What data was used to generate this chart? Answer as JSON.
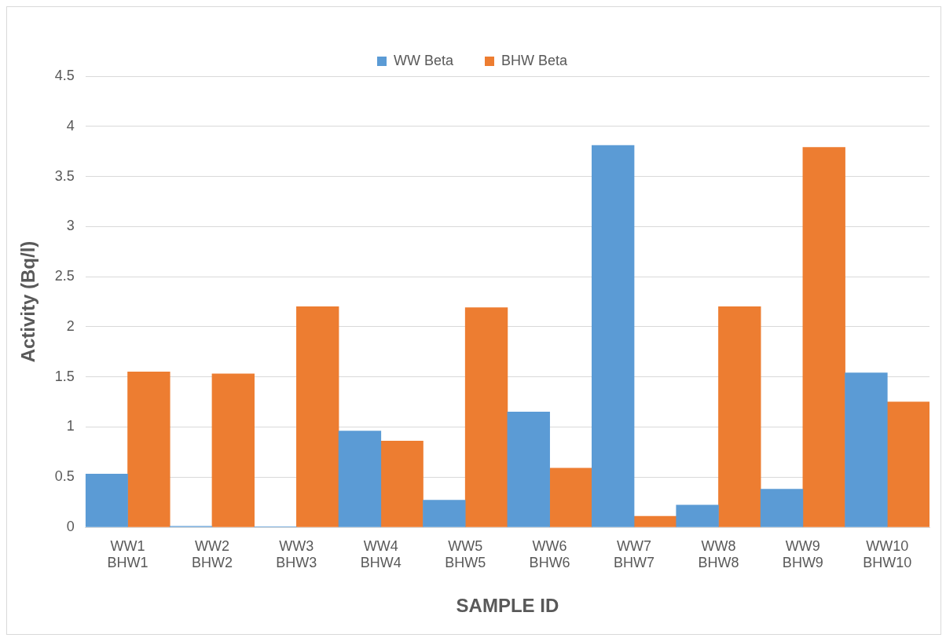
{
  "chart_data": {
    "type": "bar",
    "xlabel": "SAMPLE ID",
    "ylabel": "Activity (Bq/l)",
    "categories": [
      "WW1\nBHW1",
      "WW2\nBHW2",
      "WW3\nBHW3",
      "WW4\nBHW4",
      "WW5\nBHW5",
      "WW6\nBHW6",
      "WW7\nBHW7",
      "WW8\nBHW8",
      "WW9\nBHW9",
      "WW10\nBHW10"
    ],
    "series": [
      {
        "name": "WW Beta",
        "color": "#5b9bd5",
        "values": [
          0.53,
          0.01,
          0.005,
          0.96,
          0.27,
          1.15,
          3.81,
          0.22,
          0.38,
          1.54
        ]
      },
      {
        "name": "BHW Beta",
        "color": "#ed7d31",
        "values": [
          1.55,
          1.53,
          2.2,
          0.86,
          2.19,
          0.59,
          0.11,
          2.2,
          3.79,
          1.25
        ]
      }
    ],
    "ylim": [
      0,
      4.5
    ],
    "yticks": [
      0,
      0.5,
      1,
      1.5,
      2,
      2.5,
      3,
      3.5,
      4,
      4.5
    ],
    "grid": "y",
    "legend": "top"
  }
}
